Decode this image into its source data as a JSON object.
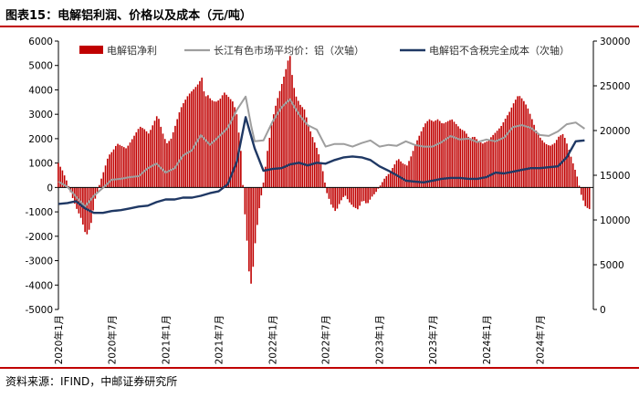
{
  "title": "图表15：电解铝利润、价格以及成本（元/吨）",
  "source": "资料来源：IFIND，中邮证券研究所",
  "colors": {
    "profit": "#c00000",
    "price": "#9e9e9e",
    "cost": "#1f3864",
    "accent": "#c00000"
  },
  "chart_data": {
    "type": "bar+line",
    "title": "",
    "left_axis": {
      "min": -5000,
      "max": 6000,
      "ticks": [
        -5000,
        -4000,
        -3000,
        -2000,
        -1000,
        0,
        1000,
        2000,
        3000,
        4000,
        5000,
        6000
      ]
    },
    "right_axis": {
      "min": 0,
      "max": 30000,
      "ticks": [
        0,
        5000,
        10000,
        15000,
        20000,
        25000,
        30000
      ]
    },
    "x_range": [
      "2020-01-01",
      "2024-12-31"
    ],
    "x_ticks": [
      "2020年1月",
      "2020年7月",
      "2021年1月",
      "2021年7月",
      "2022年1月",
      "2022年7月",
      "2023年1月",
      "2023年7月",
      "2024年1月",
      "2024年7月"
    ],
    "legend": {
      "placement": "top",
      "entries": [
        "电解铝净利",
        "长江有色市场平均价：铝（次轴）",
        "电解铝不含税完全成本（次轴）"
      ]
    },
    "series": [
      {
        "name": "电解铝净利",
        "type": "bar",
        "axis": "left",
        "points": [
          [
            "2020-01-01",
            1000
          ],
          [
            "2020-01-15",
            700
          ],
          [
            "2020-02-01",
            200
          ],
          [
            "2020-02-15",
            -300
          ],
          [
            "2020-03-01",
            -800
          ],
          [
            "2020-03-20",
            -1300
          ],
          [
            "2020-04-05",
            -2000
          ],
          [
            "2020-04-20",
            -1600
          ],
          [
            "2020-05-05",
            -500
          ],
          [
            "2020-05-20",
            100
          ],
          [
            "2020-06-05",
            700
          ],
          [
            "2020-06-20",
            1300
          ],
          [
            "2020-07-05",
            1500
          ],
          [
            "2020-07-20",
            1800
          ],
          [
            "2020-08-05",
            1700
          ],
          [
            "2020-08-20",
            1600
          ],
          [
            "2020-09-05",
            1900
          ],
          [
            "2020-09-20",
            2200
          ],
          [
            "2020-10-05",
            2500
          ],
          [
            "2020-10-20",
            2400
          ],
          [
            "2020-11-05",
            2200
          ],
          [
            "2020-11-20",
            2600
          ],
          [
            "2020-12-05",
            3000
          ],
          [
            "2020-12-20",
            2300
          ],
          [
            "2021-01-05",
            1800
          ],
          [
            "2021-01-20",
            2000
          ],
          [
            "2021-02-05",
            2600
          ],
          [
            "2021-02-20",
            3200
          ],
          [
            "2021-03-05",
            3500
          ],
          [
            "2021-03-20",
            3800
          ],
          [
            "2021-04-05",
            4000
          ],
          [
            "2021-04-20",
            4200
          ],
          [
            "2021-05-05",
            4500
          ],
          [
            "2021-05-15",
            3700
          ],
          [
            "2021-05-25",
            3800
          ],
          [
            "2021-06-05",
            3600
          ],
          [
            "2021-06-20",
            3500
          ],
          [
            "2021-07-05",
            3600
          ],
          [
            "2021-07-20",
            3900
          ],
          [
            "2021-08-05",
            3700
          ],
          [
            "2021-08-20",
            3500
          ],
          [
            "2021-09-01",
            3000
          ],
          [
            "2021-09-15",
            1500
          ],
          [
            "2021-09-25",
            -500
          ],
          [
            "2021-10-05",
            -2000
          ],
          [
            "2021-10-15",
            -3800
          ],
          [
            "2021-10-22",
            -4000
          ],
          [
            "2021-11-01",
            -2500
          ],
          [
            "2021-11-15",
            -1000
          ],
          [
            "2021-12-01",
            200
          ],
          [
            "2021-12-15",
            1500
          ],
          [
            "2022-01-01",
            2800
          ],
          [
            "2022-01-15",
            3500
          ],
          [
            "2022-02-01",
            4200
          ],
          [
            "2022-02-15",
            4800
          ],
          [
            "2022-03-01",
            5500
          ],
          [
            "2022-03-10",
            4500
          ],
          [
            "2022-03-20",
            3800
          ],
          [
            "2022-04-05",
            3400
          ],
          [
            "2022-04-20",
            3200
          ],
          [
            "2022-05-05",
            2500
          ],
          [
            "2022-05-20",
            2000
          ],
          [
            "2022-06-05",
            1500
          ],
          [
            "2022-06-20",
            800
          ],
          [
            "2022-07-05",
            -200
          ],
          [
            "2022-07-20",
            -700
          ],
          [
            "2022-08-05",
            -1000
          ],
          [
            "2022-08-20",
            -600
          ],
          [
            "2022-09-05",
            -300
          ],
          [
            "2022-09-20",
            -600
          ],
          [
            "2022-10-05",
            -800
          ],
          [
            "2022-10-20",
            -900
          ],
          [
            "2022-11-05",
            -500
          ],
          [
            "2022-11-20",
            -700
          ],
          [
            "2022-12-05",
            -400
          ],
          [
            "2022-12-20",
            -200
          ],
          [
            "2023-01-05",
            100
          ],
          [
            "2023-01-20",
            400
          ],
          [
            "2023-02-05",
            600
          ],
          [
            "2023-02-20",
            900
          ],
          [
            "2023-03-05",
            1200
          ],
          [
            "2023-03-20",
            1000
          ],
          [
            "2023-04-05",
            900
          ],
          [
            "2023-04-20",
            1300
          ],
          [
            "2023-05-05",
            1800
          ],
          [
            "2023-05-20",
            2200
          ],
          [
            "2023-06-05",
            2600
          ],
          [
            "2023-06-20",
            2800
          ],
          [
            "2023-07-05",
            2700
          ],
          [
            "2023-07-20",
            2800
          ],
          [
            "2023-08-05",
            2600
          ],
          [
            "2023-08-20",
            2700
          ],
          [
            "2023-09-05",
            2800
          ],
          [
            "2023-09-20",
            2600
          ],
          [
            "2023-10-05",
            2400
          ],
          [
            "2023-10-20",
            2300
          ],
          [
            "2023-11-05",
            2000
          ],
          [
            "2023-11-20",
            2100
          ],
          [
            "2023-12-05",
            1900
          ],
          [
            "2023-12-20",
            1800
          ],
          [
            "2024-01-05",
            1900
          ],
          [
            "2024-01-20",
            2100
          ],
          [
            "2024-02-05",
            2300
          ],
          [
            "2024-02-20",
            2500
          ],
          [
            "2024-03-05",
            2800
          ],
          [
            "2024-03-20",
            3100
          ],
          [
            "2024-04-05",
            3500
          ],
          [
            "2024-04-20",
            3800
          ],
          [
            "2024-05-05",
            3600
          ],
          [
            "2024-05-20",
            3300
          ],
          [
            "2024-06-05",
            2800
          ],
          [
            "2024-06-20",
            2300
          ],
          [
            "2024-07-05",
            2000
          ],
          [
            "2024-07-20",
            1800
          ],
          [
            "2024-08-05",
            1700
          ],
          [
            "2024-08-20",
            1800
          ],
          [
            "2024-09-05",
            2100
          ],
          [
            "2024-09-20",
            2200
          ],
          [
            "2024-10-05",
            1700
          ],
          [
            "2024-10-20",
            1100
          ],
          [
            "2024-11-05",
            500
          ],
          [
            "2024-11-20",
            -300
          ],
          [
            "2024-12-05",
            -800
          ],
          [
            "2024-12-20",
            -900
          ]
        ]
      },
      {
        "name": "长江有色市场平均价：铝（次轴）",
        "type": "line",
        "axis": "right",
        "points": [
          [
            "2020-01-01",
            14300
          ],
          [
            "2020-02-01",
            13700
          ],
          [
            "2020-03-01",
            12600
          ],
          [
            "2020-04-01",
            11500
          ],
          [
            "2020-05-01",
            12700
          ],
          [
            "2020-06-01",
            13600
          ],
          [
            "2020-07-01",
            14500
          ],
          [
            "2020-08-01",
            14600
          ],
          [
            "2020-09-01",
            14800
          ],
          [
            "2020-10-01",
            14900
          ],
          [
            "2020-11-01",
            15800
          ],
          [
            "2020-12-01",
            16300
          ],
          [
            "2021-01-01",
            15300
          ],
          [
            "2021-02-01",
            15800
          ],
          [
            "2021-03-01",
            17200
          ],
          [
            "2021-04-01",
            17800
          ],
          [
            "2021-05-01",
            19500
          ],
          [
            "2021-06-01",
            18400
          ],
          [
            "2021-07-01",
            19300
          ],
          [
            "2021-08-01",
            20300
          ],
          [
            "2021-09-01",
            22300
          ],
          [
            "2021-10-01",
            23800
          ],
          [
            "2021-10-20",
            20500
          ],
          [
            "2021-11-01",
            18800
          ],
          [
            "2021-12-01",
            18900
          ],
          [
            "2022-01-01",
            21000
          ],
          [
            "2022-02-01",
            22600
          ],
          [
            "2022-03-01",
            23500
          ],
          [
            "2022-04-01",
            21800
          ],
          [
            "2022-05-01",
            20600
          ],
          [
            "2022-06-01",
            20100
          ],
          [
            "2022-07-01",
            18200
          ],
          [
            "2022-08-01",
            18500
          ],
          [
            "2022-09-01",
            18500
          ],
          [
            "2022-10-01",
            18200
          ],
          [
            "2022-11-01",
            18600
          ],
          [
            "2022-12-01",
            18900
          ],
          [
            "2023-01-01",
            18200
          ],
          [
            "2023-02-01",
            18400
          ],
          [
            "2023-03-01",
            18300
          ],
          [
            "2023-04-01",
            18800
          ],
          [
            "2023-05-01",
            18400
          ],
          [
            "2023-06-01",
            18200
          ],
          [
            "2023-07-01",
            18200
          ],
          [
            "2023-08-01",
            18700
          ],
          [
            "2023-09-01",
            19400
          ],
          [
            "2023-10-01",
            19000
          ],
          [
            "2023-11-01",
            19100
          ],
          [
            "2023-12-01",
            18700
          ],
          [
            "2024-01-01",
            19000
          ],
          [
            "2024-02-01",
            18800
          ],
          [
            "2024-03-01",
            19200
          ],
          [
            "2024-04-01",
            20400
          ],
          [
            "2024-05-01",
            20600
          ],
          [
            "2024-06-01",
            20300
          ],
          [
            "2024-07-01",
            19500
          ],
          [
            "2024-08-01",
            19400
          ],
          [
            "2024-09-01",
            19900
          ],
          [
            "2024-10-01",
            20700
          ],
          [
            "2024-11-01",
            20900
          ],
          [
            "2024-12-01",
            20200
          ]
        ]
      },
      {
        "name": "电解铝不含税完全成本（次轴）",
        "type": "line",
        "axis": "right",
        "points": [
          [
            "2020-01-01",
            11800
          ],
          [
            "2020-02-01",
            11900
          ],
          [
            "2020-03-01",
            12100
          ],
          [
            "2020-04-01",
            11300
          ],
          [
            "2020-05-01",
            10800
          ],
          [
            "2020-06-01",
            10800
          ],
          [
            "2020-07-01",
            11000
          ],
          [
            "2020-08-01",
            11100
          ],
          [
            "2020-09-01",
            11300
          ],
          [
            "2020-10-01",
            11500
          ],
          [
            "2020-11-01",
            11600
          ],
          [
            "2020-12-01",
            12000
          ],
          [
            "2021-01-01",
            12300
          ],
          [
            "2021-02-01",
            12300
          ],
          [
            "2021-03-01",
            12500
          ],
          [
            "2021-04-01",
            12500
          ],
          [
            "2021-05-01",
            12700
          ],
          [
            "2021-06-01",
            13000
          ],
          [
            "2021-07-01",
            13200
          ],
          [
            "2021-08-01",
            14000
          ],
          [
            "2021-09-01",
            16500
          ],
          [
            "2021-10-01",
            21500
          ],
          [
            "2021-11-01",
            18000
          ],
          [
            "2021-12-01",
            15500
          ],
          [
            "2022-01-01",
            15700
          ],
          [
            "2022-02-01",
            15800
          ],
          [
            "2022-03-01",
            16200
          ],
          [
            "2022-04-01",
            16400
          ],
          [
            "2022-05-01",
            16100
          ],
          [
            "2022-06-01",
            16400
          ],
          [
            "2022-07-01",
            16300
          ],
          [
            "2022-08-01",
            16700
          ],
          [
            "2022-09-01",
            17000
          ],
          [
            "2022-10-01",
            17100
          ],
          [
            "2022-11-01",
            17000
          ],
          [
            "2022-12-01",
            16700
          ],
          [
            "2023-01-01",
            16000
          ],
          [
            "2023-02-01",
            15500
          ],
          [
            "2023-03-01",
            15000
          ],
          [
            "2023-04-01",
            14400
          ],
          [
            "2023-05-01",
            14300
          ],
          [
            "2023-06-01",
            14200
          ],
          [
            "2023-07-01",
            14400
          ],
          [
            "2023-08-01",
            14600
          ],
          [
            "2023-09-01",
            14700
          ],
          [
            "2023-10-01",
            14700
          ],
          [
            "2023-11-01",
            14600
          ],
          [
            "2023-12-01",
            14600
          ],
          [
            "2024-01-01",
            14800
          ],
          [
            "2024-02-01",
            15300
          ],
          [
            "2024-03-01",
            15200
          ],
          [
            "2024-04-01",
            15400
          ],
          [
            "2024-05-01",
            15600
          ],
          [
            "2024-06-01",
            15800
          ],
          [
            "2024-07-01",
            15800
          ],
          [
            "2024-08-01",
            15900
          ],
          [
            "2024-09-01",
            16000
          ],
          [
            "2024-10-01",
            17000
          ],
          [
            "2024-11-01",
            18800
          ],
          [
            "2024-12-01",
            18900
          ]
        ]
      }
    ]
  }
}
